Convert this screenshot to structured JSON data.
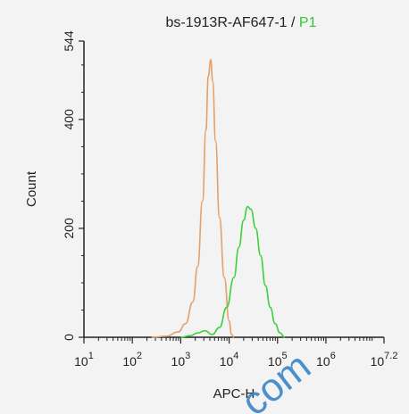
{
  "chart_data": {
    "type": "line",
    "title_prefix": "bs-1913R-AF647-1 / ",
    "title_highlight": "P1",
    "xlabel": "APC-H",
    "ylabel": "Count",
    "x_scale": "log10",
    "xlim_log10": [
      1,
      7.2
    ],
    "ylim": [
      0,
      544
    ],
    "x_ticks": [
      {
        "base": "10",
        "exp": "1"
      },
      {
        "base": "10",
        "exp": "2"
      },
      {
        "base": "10",
        "exp": "3"
      },
      {
        "base": "10",
        "exp": "4"
      },
      {
        "base": "10",
        "exp": "5"
      },
      {
        "base": "10",
        "exp": "6"
      },
      {
        "base": "10",
        "exp": "7.2"
      }
    ],
    "y_ticks": [
      "0",
      "200",
      "400",
      "544"
    ],
    "series": [
      {
        "color": "#e3a06a",
        "points_log10x": [
          [
            2.4,
            0
          ],
          [
            2.7,
            2
          ],
          [
            2.95,
            10
          ],
          [
            3.1,
            25
          ],
          [
            3.25,
            65
          ],
          [
            3.35,
            130
          ],
          [
            3.45,
            250
          ],
          [
            3.52,
            380
          ],
          [
            3.57,
            480
          ],
          [
            3.62,
            510
          ],
          [
            3.66,
            470
          ],
          [
            3.72,
            360
          ],
          [
            3.8,
            220
          ],
          [
            3.9,
            110
          ],
          [
            4.0,
            30
          ],
          [
            4.05,
            5
          ],
          [
            4.1,
            0
          ]
        ]
      },
      {
        "color": "#3ad13a",
        "points_log10x": [
          [
            3.0,
            0
          ],
          [
            3.2,
            3
          ],
          [
            3.35,
            8
          ],
          [
            3.5,
            12
          ],
          [
            3.65,
            5
          ],
          [
            3.8,
            18
          ],
          [
            3.95,
            55
          ],
          [
            4.1,
            110
          ],
          [
            4.2,
            165
          ],
          [
            4.3,
            215
          ],
          [
            4.38,
            240
          ],
          [
            4.45,
            235
          ],
          [
            4.55,
            200
          ],
          [
            4.65,
            150
          ],
          [
            4.75,
            95
          ],
          [
            4.85,
            55
          ],
          [
            4.95,
            25
          ],
          [
            5.05,
            8
          ],
          [
            5.15,
            0
          ]
        ]
      }
    ]
  },
  "watermark": "com"
}
